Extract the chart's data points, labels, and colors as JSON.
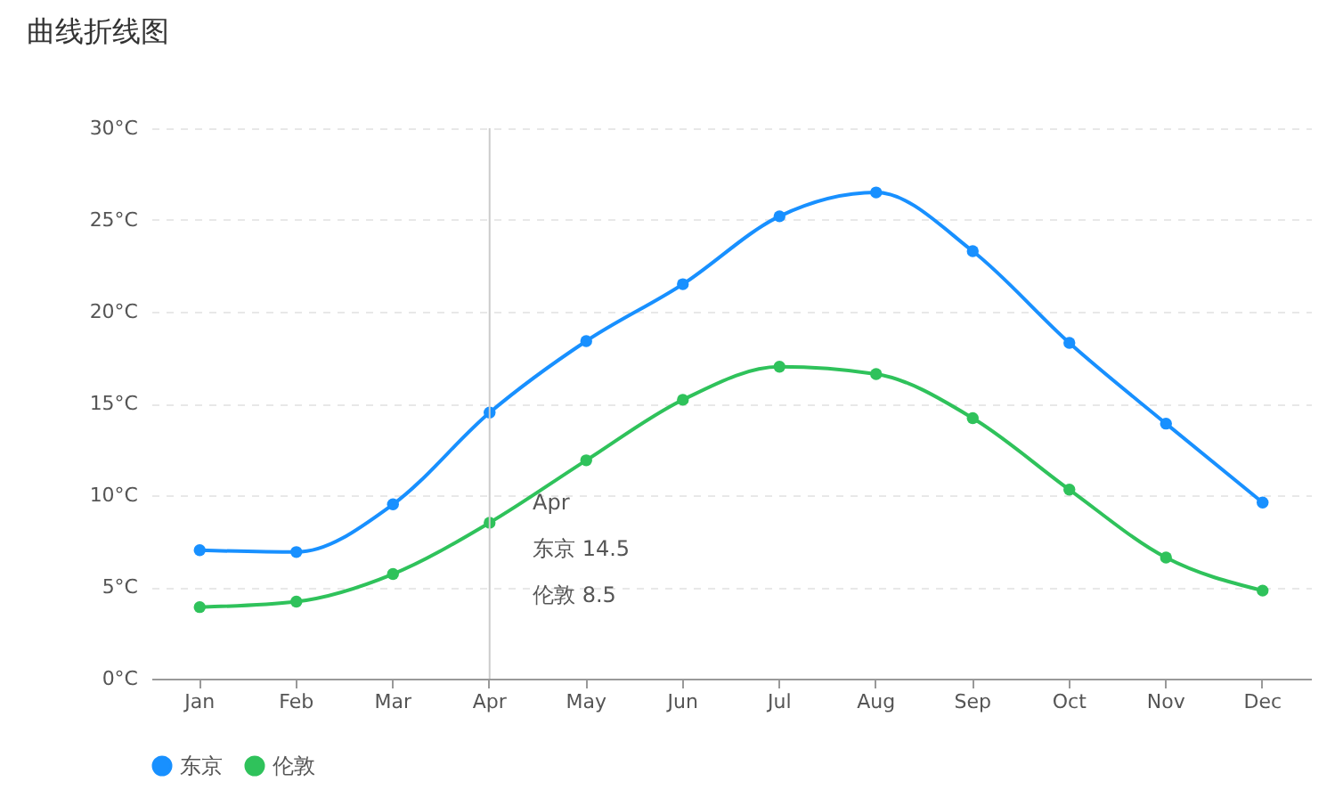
{
  "chart_data": {
    "type": "line",
    "title": "曲线折线图",
    "categories": [
      "Jan",
      "Feb",
      "Mar",
      "Apr",
      "May",
      "Jun",
      "Jul",
      "Aug",
      "Sep",
      "Oct",
      "Nov",
      "Dec"
    ],
    "series": [
      {
        "name": "东京",
        "color": "#1890ff",
        "values": [
          7.0,
          6.9,
          9.5,
          14.5,
          18.4,
          21.5,
          25.2,
          26.5,
          23.3,
          18.3,
          13.9,
          9.6
        ]
      },
      {
        "name": "伦敦",
        "color": "#2fc25b",
        "values": [
          3.9,
          4.2,
          5.7,
          8.5,
          11.9,
          15.2,
          17.0,
          16.6,
          14.2,
          10.3,
          6.6,
          4.8
        ]
      }
    ],
    "ylim": [
      0,
      30
    ],
    "yticks": [
      {
        "value": 0,
        "label": "0°C"
      },
      {
        "value": 5,
        "label": "5°C"
      },
      {
        "value": 10,
        "label": "10°C"
      },
      {
        "value": 15,
        "label": "15°C"
      },
      {
        "value": 20,
        "label": "20°C"
      },
      {
        "value": 25,
        "label": "25°C"
      },
      {
        "value": 30,
        "label": "30°C"
      }
    ],
    "grid": "y",
    "legend": "bottom",
    "marker": "circle",
    "line_style": "solid",
    "ref_lines": [
      {
        "axis": "x",
        "value": "Apr",
        "color": "#cccccc"
      }
    ],
    "annotations": [
      "Apr",
      "东京 14.5",
      "伦敦 8.5"
    ]
  }
}
